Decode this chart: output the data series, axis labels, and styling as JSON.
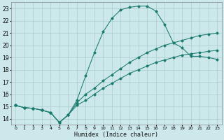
{
  "xlabel": "Humidex (Indice chaleur)",
  "bg_color": "#cce8eb",
  "grid_color": "#aacccc",
  "line_color": "#1a7a6e",
  "xlim": [
    -0.5,
    23.5
  ],
  "ylim": [
    13.5,
    23.5
  ],
  "xticks": [
    0,
    1,
    2,
    3,
    4,
    5,
    6,
    7,
    8,
    9,
    10,
    11,
    12,
    13,
    14,
    15,
    16,
    17,
    18,
    19,
    20,
    21,
    22,
    23
  ],
  "yticks": [
    14,
    15,
    16,
    17,
    18,
    19,
    20,
    21,
    22,
    23
  ],
  "line1_x": [
    0,
    1,
    2,
    3,
    4,
    5,
    6,
    7,
    8,
    9,
    10,
    11,
    12,
    13,
    14,
    15,
    16,
    17,
    18,
    19,
    20,
    21,
    22,
    23
  ],
  "line1_y": [
    15.1,
    14.9,
    14.85,
    14.7,
    14.5,
    13.7,
    14.3,
    15.5,
    17.5,
    19.4,
    21.1,
    22.2,
    22.9,
    23.1,
    23.2,
    23.2,
    22.8,
    21.7,
    20.2,
    19.8,
    19.1,
    19.1,
    19.0,
    18.85
  ],
  "line2_x": [
    0,
    1,
    2,
    3,
    4,
    5,
    6,
    7,
    8,
    9,
    10,
    11,
    12,
    13,
    14,
    15,
    16,
    17,
    18,
    19,
    20,
    21,
    22,
    23
  ],
  "line2_y": [
    15.1,
    14.9,
    14.85,
    14.7,
    14.5,
    13.7,
    14.3,
    15.3,
    16.0,
    16.5,
    17.1,
    17.6,
    18.1,
    18.6,
    19.0,
    19.4,
    19.7,
    20.0,
    20.2,
    20.4,
    20.6,
    20.8,
    20.9,
    21.0
  ],
  "line3_x": [
    0,
    1,
    2,
    3,
    4,
    5,
    6,
    7,
    8,
    9,
    10,
    11,
    12,
    13,
    14,
    15,
    16,
    17,
    18,
    19,
    20,
    21,
    22,
    23
  ],
  "line3_y": [
    15.1,
    14.9,
    14.85,
    14.7,
    14.5,
    13.7,
    14.3,
    15.1,
    15.5,
    16.0,
    16.5,
    16.9,
    17.3,
    17.7,
    18.0,
    18.3,
    18.6,
    18.8,
    19.0,
    19.2,
    19.3,
    19.4,
    19.5,
    19.6
  ]
}
